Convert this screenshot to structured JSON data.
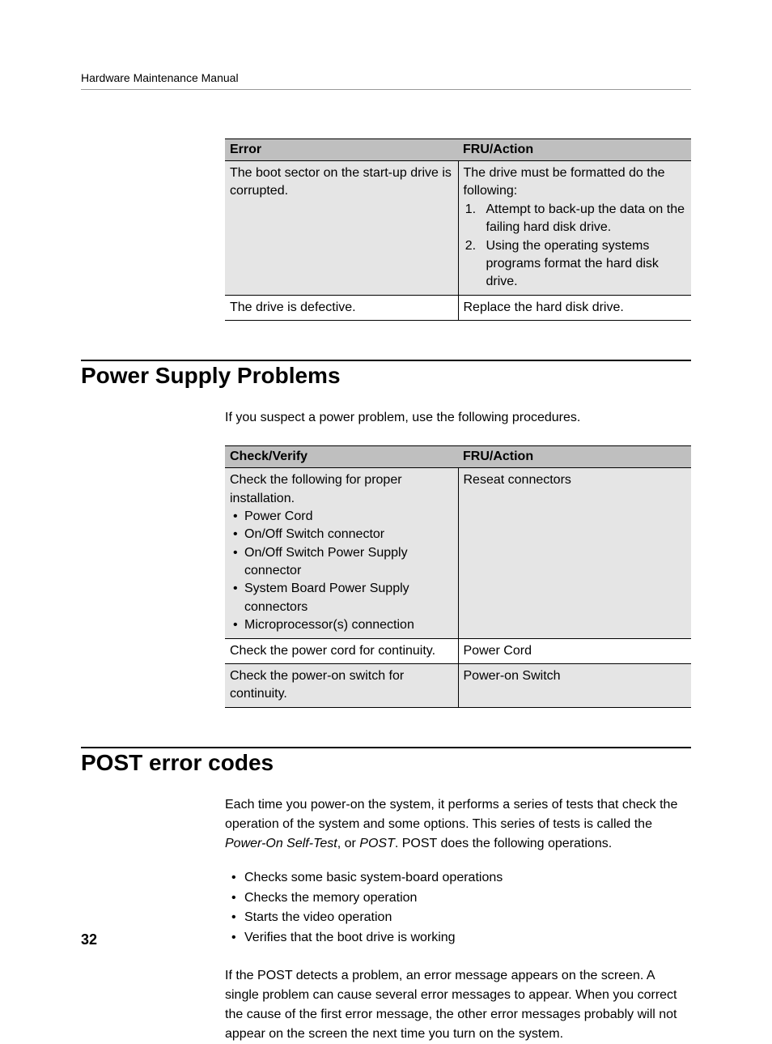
{
  "header": {
    "title": "Hardware Maintenance Manual"
  },
  "table1": {
    "headers": {
      "col1": "Error",
      "col2": "FRU/Action"
    },
    "rows": [
      {
        "error": "The boot sector on the start-up drive is corrupted.",
        "action_intro": "The drive must be formatted do the following:",
        "action_step1": "Attempt to back-up the data on the failing hard disk drive.",
        "action_step2": "Using the operating systems programs format the hard disk drive."
      },
      {
        "error": "The drive is defective.",
        "action": "Replace the hard disk drive."
      }
    ]
  },
  "section1": {
    "heading": "Power Supply Problems",
    "intro": "If you suspect a power problem, use the following procedures."
  },
  "table2": {
    "headers": {
      "col1": "Check/Verify",
      "col2": "FRU/Action"
    },
    "rows": [
      {
        "check_intro": "Check the following for proper installation.",
        "check_items": {
          "i1": "Power Cord",
          "i2": "On/Off Switch connector",
          "i3": "On/Off Switch Power Supply connector",
          "i4": "System Board Power Supply connectors",
          "i5": "Microprocessor(s) connection"
        },
        "action": "Reseat connectors"
      },
      {
        "check": "Check the power cord for continuity.",
        "action": "Power Cord"
      },
      {
        "check": "Check the power-on switch for continuity.",
        "action": "Power-on Switch"
      }
    ]
  },
  "section2": {
    "heading": "POST error codes",
    "para1_a": "Each time you power-on the system, it performs a series of tests that check the operation of the system and some options. This series of tests is called the ",
    "para1_italic1": "Power-On Self-Test",
    "para1_b": ", or ",
    "para1_italic2": "POST",
    "para1_c": ". POST does the following operations.",
    "bullets": {
      "b1": "Checks some basic system-board operations",
      "b2": "Checks the memory operation",
      "b3": "Starts the video operation",
      "b4": "Verifies that the boot drive is working"
    },
    "para2": "If the POST detects a problem, an error message appears on the screen. A single problem can cause several error messages to appear. When you correct the cause of the first error message, the other error messages probably will not appear on the screen the next time you turn on the system."
  },
  "page_number": "32"
}
